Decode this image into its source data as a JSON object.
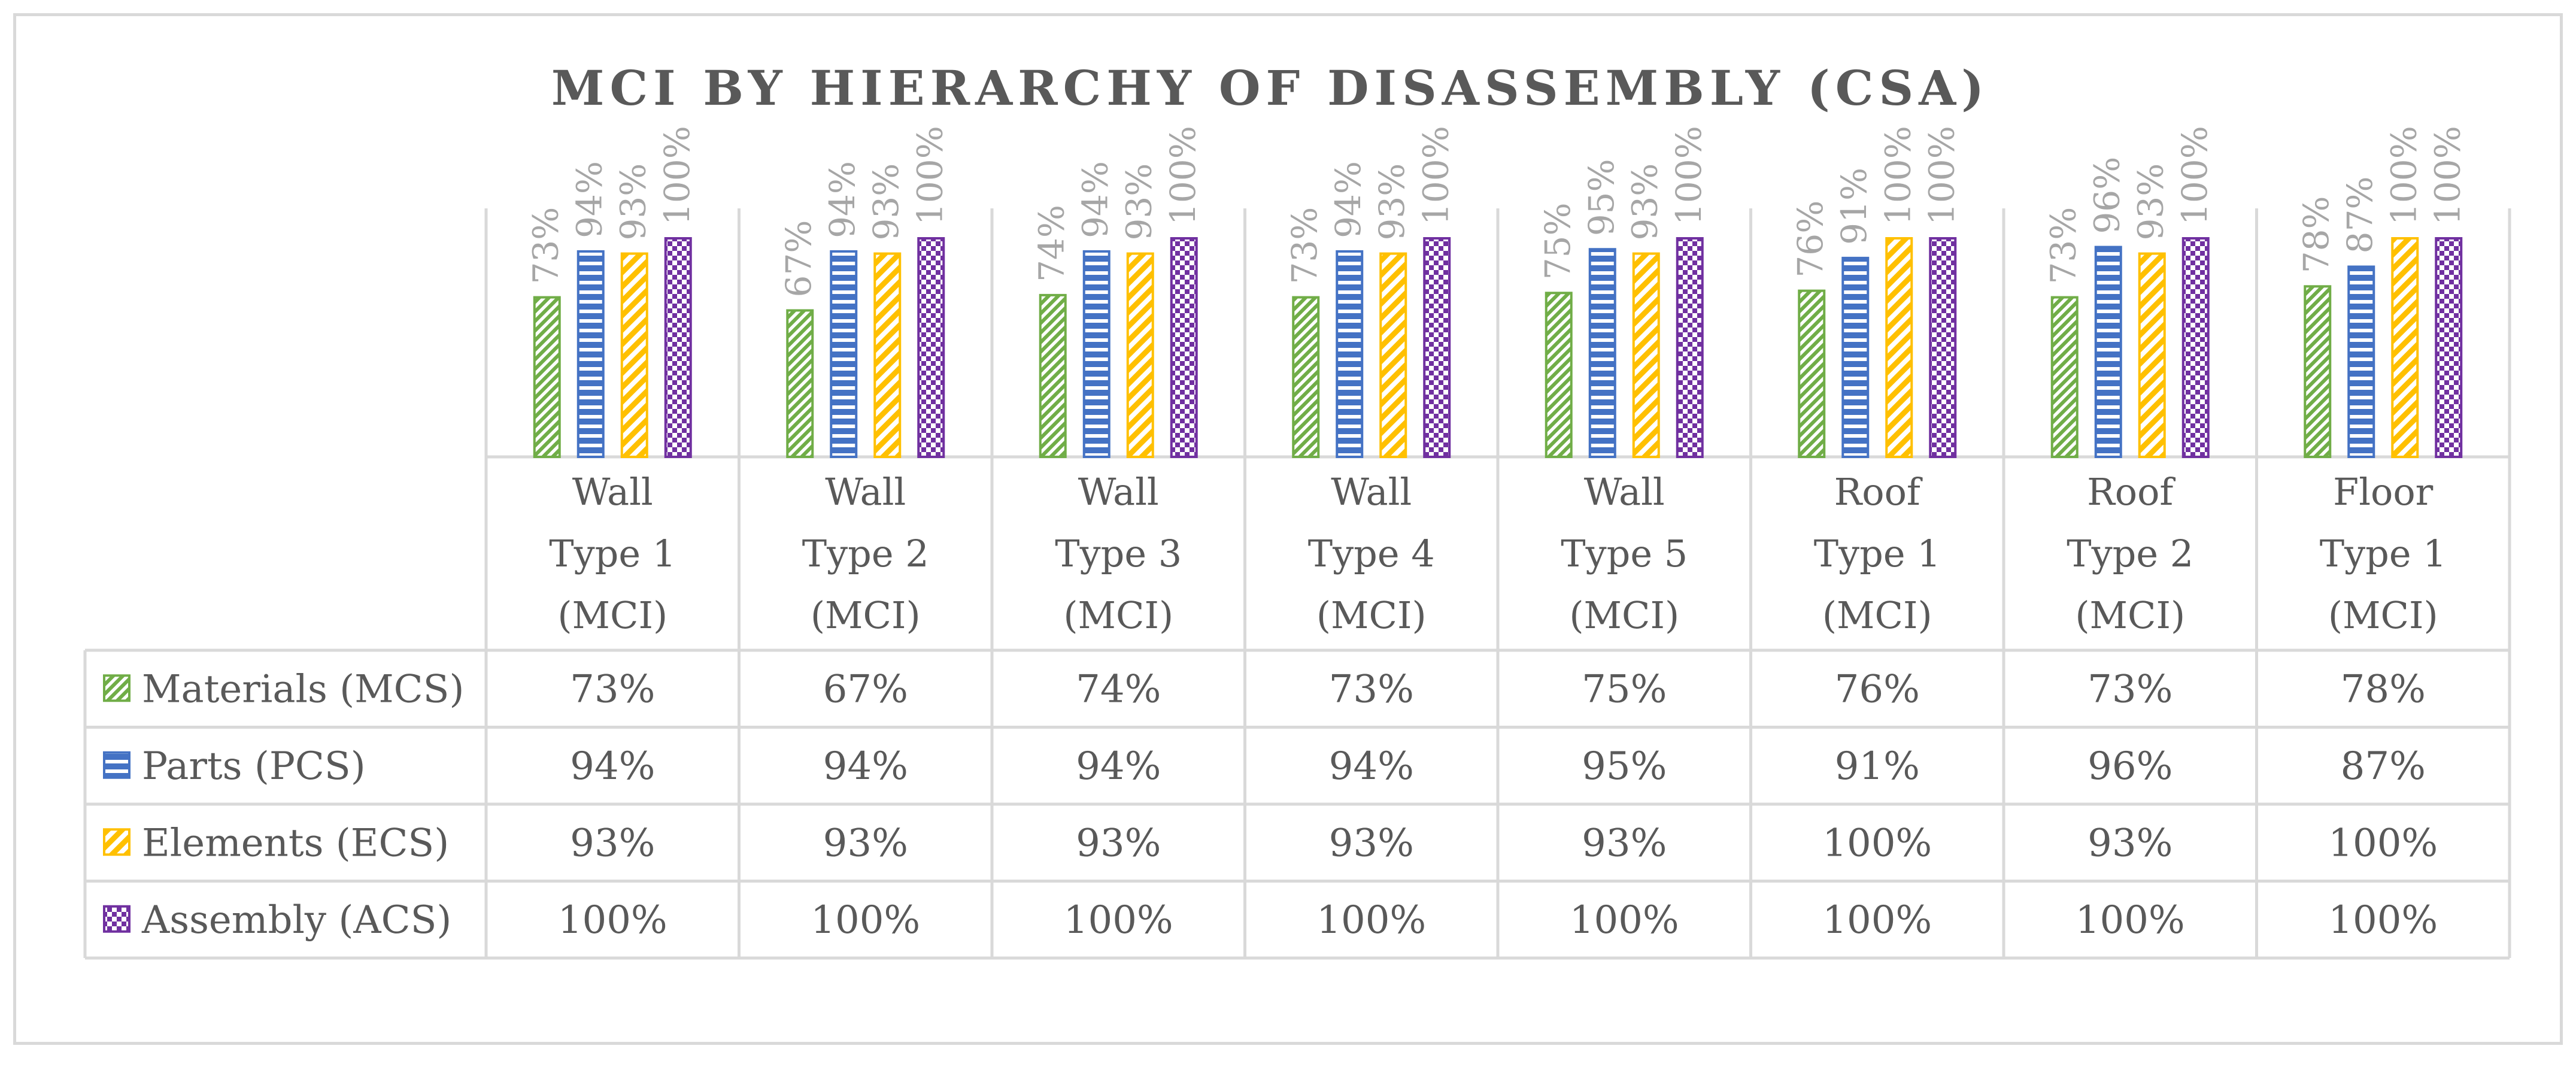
{
  "colors": {
    "materials": "#70ad47",
    "parts": "#4472c4",
    "elements": "#ffc000",
    "assembly": "#7030a0",
    "grid": "#d9d9d9",
    "text": "#595959",
    "label": "#a6a6a6"
  },
  "chart_data": {
    "type": "bar",
    "title": "MCI BY HIERARCHY OF DISASSEMBLY (CSA)",
    "categories": [
      [
        "Wall",
        "Type 1",
        "(MCI)"
      ],
      [
        "Wall",
        "Type 2",
        "(MCI)"
      ],
      [
        "Wall",
        "Type 3",
        "(MCI)"
      ],
      [
        "Wall",
        "Type 4",
        "(MCI)"
      ],
      [
        "Wall",
        "Type 5",
        "(MCI)"
      ],
      [
        "Roof",
        "Type 1",
        "(MCI)"
      ],
      [
        "Roof",
        "Type 2",
        "(MCI)"
      ],
      [
        "Floor",
        "Type 1",
        "(MCI)"
      ]
    ],
    "ylim": [
      0,
      100
    ],
    "unit": "%",
    "legend": "data-table",
    "series": [
      {
        "name": "Materials (MCS)",
        "key": "materials",
        "pattern": "diagonal",
        "values": [
          73,
          67,
          74,
          73,
          75,
          76,
          73,
          78
        ]
      },
      {
        "name": "Parts (PCS)",
        "key": "parts",
        "pattern": "horizontal",
        "values": [
          94,
          94,
          94,
          94,
          95,
          91,
          96,
          87
        ]
      },
      {
        "name": "Elements (ECS)",
        "key": "elements",
        "pattern": "wide-diagonal",
        "values": [
          93,
          93,
          93,
          93,
          93,
          100,
          93,
          100
        ]
      },
      {
        "name": "Assembly (ACS)",
        "key": "assembly",
        "pattern": "checker",
        "values": [
          100,
          100,
          100,
          100,
          100,
          100,
          100,
          100
        ]
      }
    ]
  }
}
